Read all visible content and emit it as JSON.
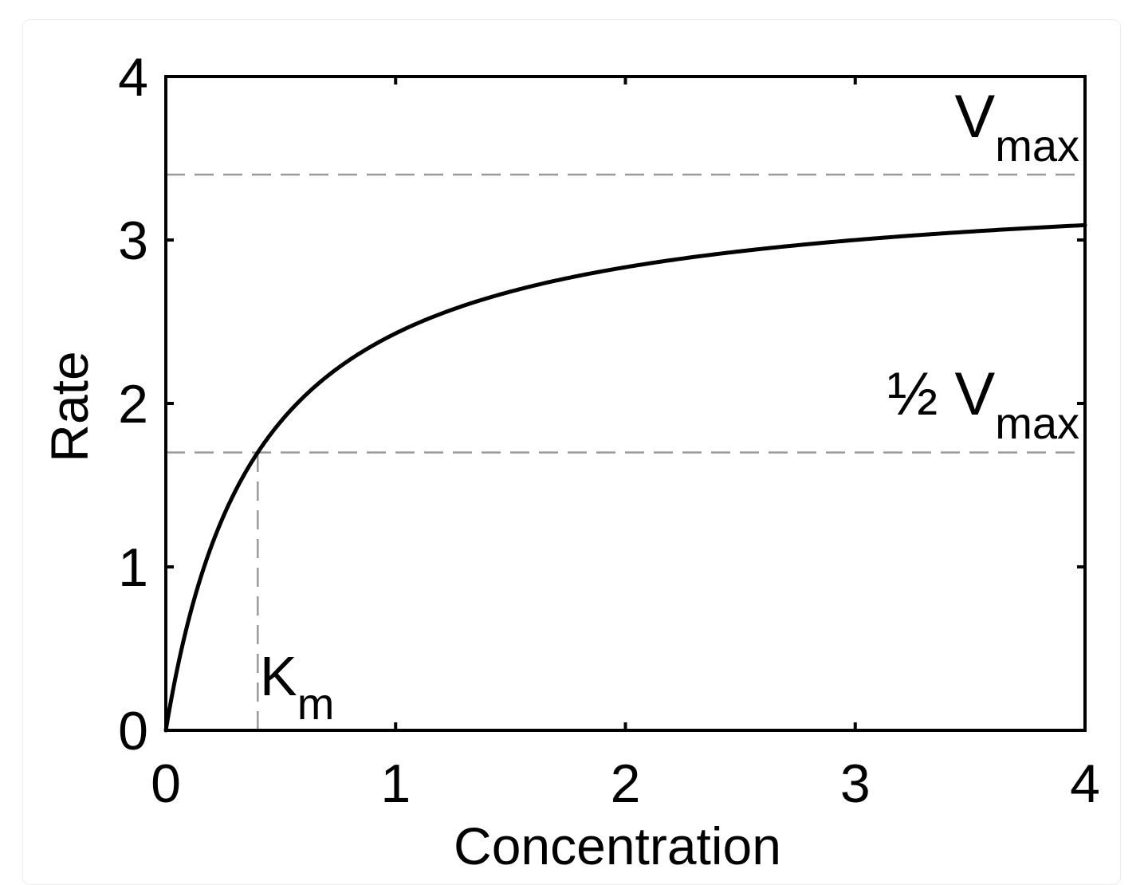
{
  "chart_data": {
    "type": "line",
    "title": "",
    "xlabel": "Concentration",
    "ylabel": "Rate",
    "xlim": [
      0,
      4
    ],
    "ylim": [
      0,
      4
    ],
    "x_ticks": [
      "0",
      "1",
      "2",
      "3",
      "4"
    ],
    "y_ticks": [
      "0",
      "1",
      "2",
      "3",
      "4"
    ],
    "grid": false,
    "series": [
      {
        "model": "michaelis-menten",
        "Vmax": 3.4,
        "Km": 0.4,
        "x": [
          0,
          0.05,
          0.1,
          0.2,
          0.3,
          0.4,
          0.5,
          0.75,
          1,
          1.5,
          2,
          2.5,
          3,
          3.5,
          4
        ],
        "y": [
          0,
          0.378,
          0.68,
          1.133,
          1.457,
          1.7,
          1.889,
          2.217,
          2.429,
          2.684,
          2.833,
          2.931,
          3.0,
          3.051,
          3.091
        ]
      }
    ],
    "reference_lines": [
      {
        "orientation": "horizontal",
        "value": 3.4,
        "style": "dashed",
        "label_main": "V",
        "label_sub": "max"
      },
      {
        "orientation": "horizontal",
        "value": 1.7,
        "style": "dashed",
        "label_main": "½ V",
        "label_sub": "max"
      },
      {
        "orientation": "vertical",
        "value": 0.4,
        "style": "dashed",
        "label_main": "K",
        "label_sub": "m"
      }
    ],
    "colors": {
      "curve": "#000000",
      "axes": "#000000",
      "reference": "#9a9a9a",
      "background": "#ffffff"
    }
  }
}
